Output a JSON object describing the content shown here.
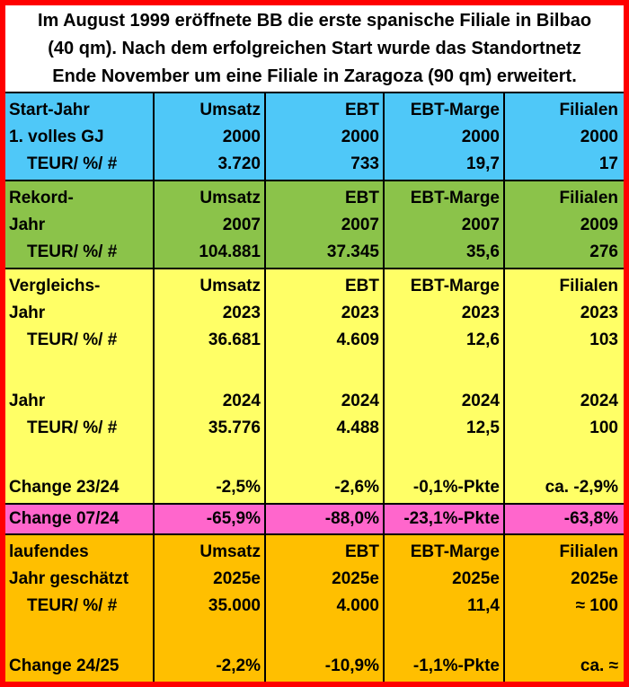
{
  "header": {
    "lines": [
      "Im August 1999 eröffnete BB die erste spanische Filiale in Bilbao",
      "(40 qm). Nach dem erfolgreichen Start wurde das Standortnetz",
      "Ende November um eine Filiale in Zaragoza (90 qm) erweitert."
    ]
  },
  "colors": {
    "border": "#ff0000",
    "header_bg": "#ffffff",
    "start": "#4fc8f8",
    "rekord": "#8bc34a",
    "vergleich": "#ffff66",
    "change_07_24": "#ff66cc",
    "laufend": "#ffbf00"
  },
  "start": {
    "rows": [
      [
        "Start-Jahr",
        "Umsatz",
        "EBT",
        "EBT-Marge",
        "Filialen"
      ],
      [
        "1. volles GJ",
        "2000",
        "2000",
        "2000",
        "2000"
      ],
      [
        "TEUR/ %/ #",
        "3.720",
        "733",
        "19,7",
        "17"
      ]
    ]
  },
  "rekord": {
    "rows": [
      [
        "Rekord-",
        "Umsatz",
        "EBT",
        "EBT-Marge",
        "Filialen"
      ],
      [
        "Jahr",
        "2007",
        "2007",
        "2007",
        "2009"
      ],
      [
        "TEUR/ %/ #",
        "104.881",
        "37.345",
        "35,6",
        "276"
      ]
    ]
  },
  "vergleich": {
    "rows": [
      [
        "Vergleichs-",
        "Umsatz",
        "EBT",
        "EBT-Marge",
        "Filialen"
      ],
      [
        "Jahr",
        "2023",
        "2023",
        "2023",
        "2023"
      ],
      [
        "TEUR/ %/ #",
        "36.681",
        "4.609",
        "12,6",
        "103"
      ],
      [
        "",
        "",
        "",
        "",
        ""
      ],
      [
        "Jahr",
        "2024",
        "2024",
        "2024",
        "2024"
      ],
      [
        "TEUR/ %/ #",
        "35.776",
        "4.488",
        "12,5",
        "100"
      ],
      [
        "",
        "",
        "",
        "",
        ""
      ],
      [
        "Change 23/24",
        "-2,5%",
        "-2,6%",
        "-0,1%-Pkte",
        "ca. -2,9%"
      ]
    ]
  },
  "change_07_24": {
    "rows": [
      [
        "Change 07/24",
        "-65,9%",
        "-88,0%",
        "-23,1%-Pkte",
        "-63,8%"
      ]
    ]
  },
  "laufend": {
    "rows": [
      [
        "laufendes",
        "Umsatz",
        "EBT",
        "EBT-Marge",
        "Filialen"
      ],
      [
        "Jahr geschätzt",
        "2025e",
        "2025e",
        "2025e",
        "2025e"
      ],
      [
        "TEUR/ %/ #",
        "35.000",
        "4.000",
        "11,4",
        "≈ 100"
      ],
      [
        "",
        "",
        "",
        "",
        ""
      ],
      [
        "Change 24/25",
        "-2,2%",
        "-10,9%",
        "-1,1%-Pkte",
        "ca. ≈"
      ]
    ]
  }
}
